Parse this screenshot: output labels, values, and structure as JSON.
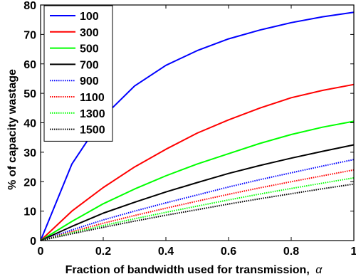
{
  "chart_data": {
    "type": "line",
    "xlabel": "Fraction of bandwidth used for transmission,",
    "xlabel_symbol": "α",
    "ylabel": "% of capacity wastage",
    "xlim": [
      0,
      1
    ],
    "ylim": [
      0,
      80
    ],
    "xticks": [
      0,
      0.2,
      0.4,
      0.6,
      0.8,
      1
    ],
    "xtick_labels": [
      "0",
      "0.2",
      "0.4",
      "0.6",
      "0.8",
      "1"
    ],
    "yticks": [
      0,
      10,
      20,
      30,
      40,
      50,
      60,
      70,
      80
    ],
    "ytick_labels": [
      "0",
      "10",
      "20",
      "30",
      "40",
      "50",
      "60",
      "70",
      "80"
    ],
    "grid": false,
    "legend_position": "top-left",
    "x": [
      0,
      0.1,
      0.2,
      0.3,
      0.4,
      0.5,
      0.6,
      0.7,
      0.8,
      0.9,
      1.0
    ],
    "series": [
      {
        "name": "100",
        "color": "#0000ff",
        "style": "solid",
        "values": [
          0,
          26,
          42,
          52.5,
          59.5,
          64.5,
          68.5,
          71.5,
          74,
          76,
          77.5
        ]
      },
      {
        "name": "300",
        "color": "#ff0000",
        "style": "solid",
        "values": [
          0,
          10,
          18,
          25,
          31,
          36.5,
          41,
          45,
          48.5,
          51,
          53
        ]
      },
      {
        "name": "500",
        "color": "#00ff00",
        "style": "solid",
        "values": [
          0,
          6.5,
          12.5,
          17.5,
          22,
          26,
          29.5,
          33,
          36,
          38.5,
          40.5
        ]
      },
      {
        "name": "700",
        "color": "#000000",
        "style": "solid",
        "values": [
          0,
          4.8,
          9.3,
          13,
          16.5,
          19.7,
          22.8,
          25.5,
          28,
          30.3,
          32.5
        ]
      },
      {
        "name": "900",
        "color": "#0000ff",
        "style": "dotted",
        "values": [
          0,
          3.6,
          7,
          10,
          12.8,
          15.5,
          18.2,
          20.7,
          23,
          25.3,
          27.5
        ]
      },
      {
        "name": "1100",
        "color": "#ff0000",
        "style": "dotted",
        "values": [
          0,
          3,
          5.9,
          8.5,
          11,
          13.4,
          15.7,
          17.9,
          20,
          22,
          24
        ]
      },
      {
        "name": "1300",
        "color": "#00ff00",
        "style": "dotted",
        "values": [
          0,
          2.6,
          5.1,
          7.4,
          9.6,
          11.7,
          13.8,
          15.8,
          17.7,
          19.5,
          21.3
        ]
      },
      {
        "name": "1500",
        "color": "#000000",
        "style": "dotted",
        "values": [
          0,
          2.3,
          4.5,
          6.6,
          8.6,
          10.5,
          12.4,
          14.2,
          15.9,
          17.6,
          19.2
        ]
      }
    ]
  }
}
